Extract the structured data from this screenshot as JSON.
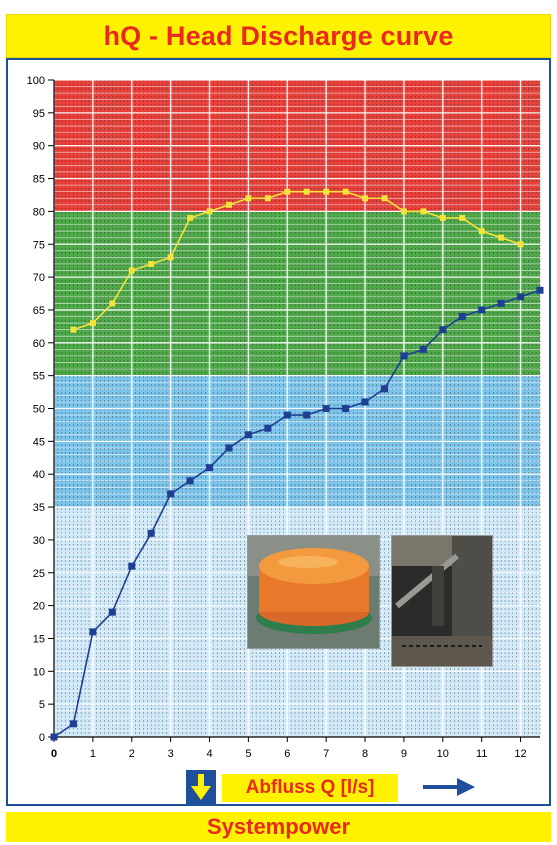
{
  "title": "hQ - Head Discharge curve",
  "footer": "Systempower",
  "chart_data": {
    "type": "line",
    "title": "hQ - Head Discharge curve",
    "xlabel": "Abfluss Q [l/s]",
    "ylabel": "",
    "xlim": [
      0,
      12.5
    ],
    "ylim": [
      0,
      100
    ],
    "xticks": [
      0,
      1,
      2,
      3,
      4,
      5,
      6,
      7,
      8,
      9,
      10,
      11,
      12
    ],
    "yticks": [
      0,
      5,
      10,
      15,
      20,
      25,
      30,
      35,
      40,
      45,
      50,
      55,
      60,
      65,
      70,
      75,
      80,
      85,
      90,
      95,
      100
    ],
    "grid": true,
    "bands": [
      {
        "from": 80,
        "to": 100,
        "color": "#e8403a"
      },
      {
        "from": 55,
        "to": 80,
        "color": "#4fa84a"
      },
      {
        "from": 35,
        "to": 55,
        "color": "#7cc4ea"
      },
      {
        "from": 0,
        "to": 35,
        "color": "#cfe9f8"
      }
    ],
    "series": [
      {
        "color": "#f3e33a",
        "marker": "square",
        "x": [
          0.5,
          1,
          1.5,
          2,
          2.5,
          3,
          3.5,
          4,
          4.5,
          5,
          5.5,
          6,
          6.5,
          7,
          7.5,
          8,
          8.5,
          9,
          9.5,
          10,
          10.5,
          11,
          11.5,
          12
        ],
        "y": [
          62,
          63,
          66,
          71,
          72,
          73,
          79,
          80,
          81,
          82,
          82,
          83,
          83,
          83,
          83,
          82,
          82,
          80,
          80,
          79,
          79,
          77,
          76,
          75
        ]
      },
      {
        "color": "#1f3f95",
        "marker": "square",
        "x": [
          0,
          0.5,
          1,
          1.5,
          2,
          2.5,
          3,
          3.5,
          4,
          4.5,
          5,
          5.5,
          6,
          6.5,
          7,
          7.5,
          8,
          8.5,
          9,
          9.5,
          10,
          10.5,
          11,
          11.5,
          12,
          12.5
        ],
        "y": [
          0,
          2,
          16,
          19,
          26,
          31,
          37,
          39,
          41,
          44,
          46,
          47,
          49,
          49,
          50,
          50,
          51,
          53,
          58,
          59,
          62,
          64,
          65,
          66,
          67,
          68
        ]
      }
    ]
  },
  "colors": {
    "accent_yellow": "#fff200",
    "accent_red": "#e8291c",
    "frame_blue": "#1f4e9b"
  },
  "icons": {
    "down_arrow": "down-arrow-icon",
    "right_arrow": "right-arrow-icon"
  }
}
